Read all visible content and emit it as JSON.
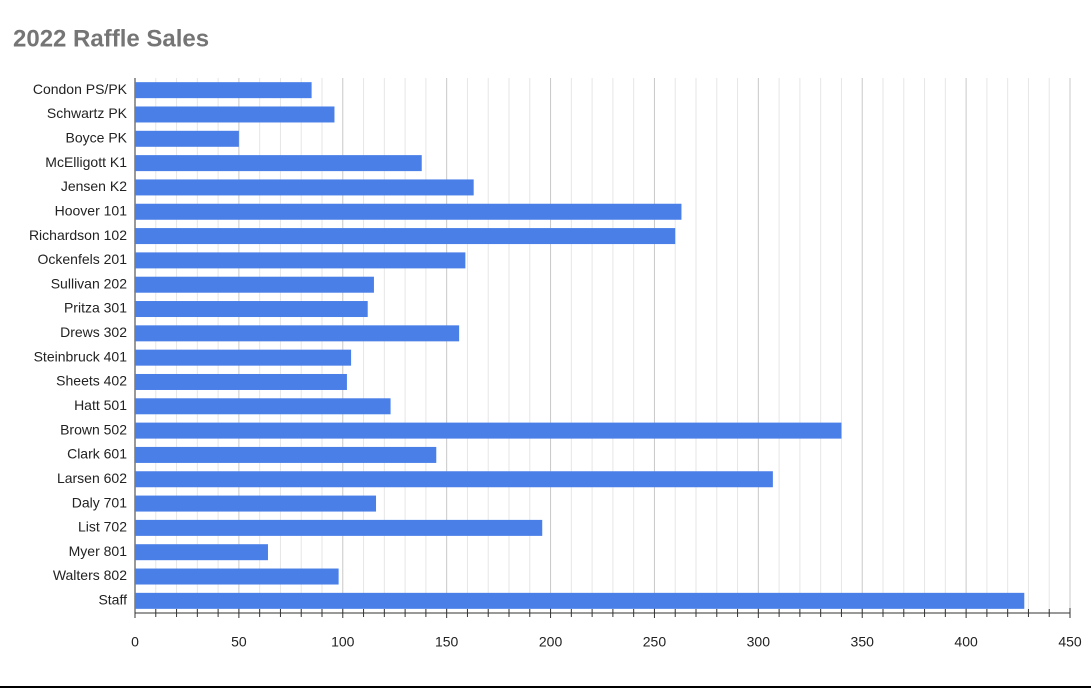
{
  "chart_data": {
    "type": "bar",
    "orientation": "horizontal",
    "title": "2022 Raffle Sales",
    "categories": [
      "Condon PS/PK",
      "Schwartz PK",
      "Boyce PK",
      "McElligott K1",
      "Jensen K2",
      "Hoover 101",
      "Richardson 102",
      "Ockenfels 201",
      "Sullivan 202",
      "Pritza 301",
      "Drews 302",
      "Steinbruck 401",
      "Sheets 402",
      "Hatt 501",
      "Brown 502",
      "Clark 601",
      "Larsen 602",
      "Daly 701",
      "List 702",
      "Myer 801",
      "Walters 802",
      "Staff"
    ],
    "values": [
      85,
      96,
      50,
      138,
      163,
      263,
      260,
      159,
      115,
      112,
      156,
      104,
      102,
      123,
      340,
      145,
      307,
      116,
      196,
      64,
      98,
      428
    ],
    "color": "#4a7fe8",
    "xlim": [
      0,
      450
    ],
    "xticks": [
      0,
      50,
      100,
      150,
      200,
      250,
      300,
      350,
      400,
      450
    ],
    "grid": true
  }
}
